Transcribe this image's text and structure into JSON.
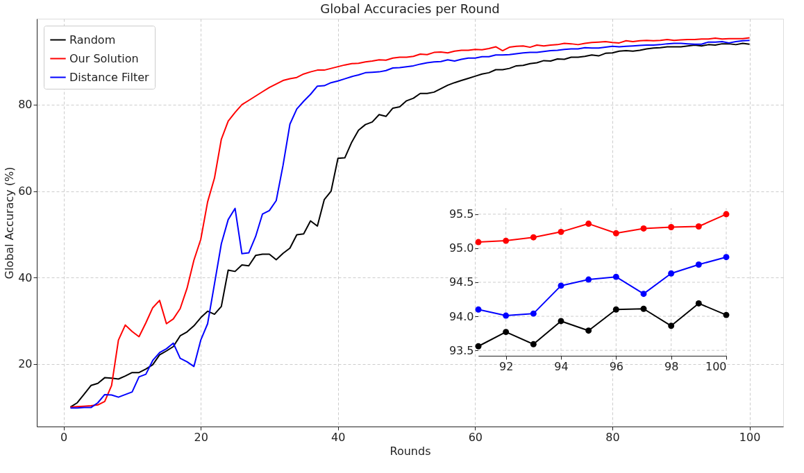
{
  "chart_data": [
    {
      "type": "line",
      "title": "Global Accuracies per Round",
      "xlabel": "Rounds",
      "ylabel": "Global Accuracy (%)",
      "x": [
        1,
        2,
        3,
        4,
        5,
        6,
        7,
        8,
        9,
        10,
        11,
        12,
        13,
        14,
        15,
        16,
        17,
        18,
        19,
        20,
        21,
        22,
        23,
        24,
        25,
        26,
        27,
        28,
        29,
        30,
        31,
        32,
        33,
        34,
        35,
        36,
        37,
        38,
        39,
        40,
        41,
        42,
        43,
        44,
        45,
        46,
        47,
        48,
        49,
        50,
        51,
        52,
        53,
        54,
        55,
        56,
        57,
        58,
        59,
        60,
        61,
        62,
        63,
        64,
        65,
        66,
        67,
        68,
        69,
        70,
        71,
        72,
        73,
        74,
        75,
        76,
        77,
        78,
        79,
        80,
        81,
        82,
        83,
        84,
        85,
        86,
        87,
        88,
        89,
        90,
        91,
        92,
        93,
        94,
        95,
        96,
        97,
        98,
        99,
        100
      ],
      "series": [
        {
          "name": "Random",
          "color": "#000000",
          "values": [
            10,
            11,
            13,
            15,
            15.5,
            16.8,
            16.7,
            16.5,
            17.2,
            18,
            18,
            18.8,
            19.8,
            22.1,
            23,
            24,
            26.5,
            27.4,
            28.8,
            30.7,
            32.2,
            31.5,
            33.3,
            41.7,
            41.4,
            42.9,
            42.7,
            45.1,
            45.4,
            45.4,
            44.1,
            45.6,
            46.8,
            49.9,
            50.1,
            53.1,
            51.9,
            58,
            60,
            67.6,
            67.7,
            71.3,
            74.1,
            75.4,
            76,
            77.7,
            77.3,
            79.2,
            79.5,
            80.9,
            81.5,
            82.6,
            82.6,
            82.9,
            83.7,
            84.5,
            85.1,
            85.6,
            86.1,
            86.6,
            87.1,
            87.4,
            88.1,
            88.1,
            88.4,
            89,
            89.1,
            89.5,
            89.7,
            90.2,
            90.1,
            90.6,
            90.5,
            91,
            91,
            91.2,
            91.5,
            91.3,
            91.9,
            92,
            92.4,
            92.5,
            92.4,
            92.6,
            92.9,
            93.1,
            93.2,
            93.4,
            93.4,
            93.4,
            93.6,
            93.8,
            93.6,
            93.9,
            93.8,
            94.1,
            94.1,
            93.9,
            94.2,
            94
          ]
        },
        {
          "name": "Our Solution",
          "color": "#ff0000",
          "values": [
            10,
            10.1,
            10.2,
            10.3,
            10.5,
            11.3,
            15,
            25.5,
            29,
            27.5,
            26.3,
            29.5,
            33,
            34.7,
            29.3,
            30.4,
            32.8,
            37.5,
            44,
            48.8,
            57.5,
            63,
            72,
            76.2,
            78.2,
            80,
            81,
            82,
            83,
            84,
            84.8,
            85.6,
            86,
            86.3,
            87.1,
            87.6,
            88,
            88,
            88.4,
            88.8,
            89.2,
            89.5,
            89.6,
            89.9,
            90.1,
            90.4,
            90.3,
            90.8,
            91,
            91,
            91.2,
            91.7,
            91.6,
            92.1,
            92.2,
            92,
            92.4,
            92.6,
            92.6,
            92.8,
            92.7,
            93,
            93.4,
            92.5,
            93.3,
            93.5,
            93.6,
            93.3,
            93.8,
            93.6,
            93.8,
            93.9,
            94.2,
            94.1,
            93.9,
            94.2,
            94.4,
            94.5,
            94.6,
            94.4,
            94.3,
            94.8,
            94.6,
            94.8,
            94.9,
            94.8,
            94.9,
            95.1,
            94.9,
            95,
            95.1,
            95.1,
            95.2,
            95.2,
            95.4,
            95.2,
            95.3,
            95.3,
            95.3,
            95.5
          ]
        },
        {
          "name": "Distance Filter",
          "color": "#0000ff",
          "values": [
            9.8,
            9.8,
            9.9,
            9.9,
            11,
            12.9,
            12.8,
            12.3,
            12.9,
            13.5,
            17,
            17.6,
            20.8,
            22.6,
            23.5,
            24.8,
            21.3,
            20.5,
            19.4,
            25.5,
            29.3,
            38.5,
            47.8,
            53.4,
            56,
            45.5,
            45.7,
            49.5,
            54.7,
            55.5,
            57.8,
            66,
            75.5,
            79,
            80.8,
            82.4,
            84.3,
            84.4,
            85.1,
            85.5,
            86,
            86.5,
            86.9,
            87.4,
            87.5,
            87.6,
            87.9,
            88.5,
            88.6,
            88.8,
            89,
            89.4,
            89.7,
            89.9,
            90,
            90.4,
            90.1,
            90.5,
            90.8,
            90.8,
            91.1,
            91.1,
            91.5,
            91.5,
            91.6,
            91.8,
            92,
            92.1,
            92.1,
            92.3,
            92.5,
            92.6,
            92.8,
            92.9,
            92.9,
            93.2,
            93.1,
            93.1,
            93.3,
            93.5,
            93.4,
            93.5,
            93.6,
            93.7,
            93.8,
            93.8,
            93.9,
            94.1,
            94.2,
            94.2,
            94.1,
            94,
            94,
            94.5,
            94.5,
            94.6,
            94.3,
            94.6,
            94.8,
            94.9
          ]
        }
      ],
      "xlim": [
        -3.9,
        104.9
      ],
      "ylim": [
        5.5,
        99.9
      ],
      "xticks": [
        0,
        20,
        40,
        60,
        80,
        100
      ],
      "yticks": [
        20,
        40,
        60,
        80
      ],
      "grid": true,
      "legend": "top left"
    },
    {
      "type": "line",
      "x": [
        91,
        92,
        93,
        94,
        95,
        96,
        97,
        98,
        99,
        100
      ],
      "series": [
        {
          "color": "#ff0000",
          "values": [
            95.09,
            95.11,
            95.16,
            95.24,
            95.36,
            95.22,
            95.29,
            95.31,
            95.32,
            95.5
          ]
        },
        {
          "color": "#0000ff",
          "values": [
            94.1,
            94.01,
            94.04,
            94.45,
            94.54,
            94.58,
            94.33,
            94.63,
            94.76,
            94.87
          ]
        },
        {
          "color": "#000000",
          "values": [
            93.56,
            93.77,
            93.59,
            93.93,
            93.79,
            94.1,
            94.11,
            93.86,
            94.19,
            94.02
          ]
        }
      ],
      "xlim": [
        91,
        100
      ],
      "ylim": [
        93.42,
        95.59
      ],
      "xticks": [
        92,
        94,
        96,
        98,
        100
      ],
      "yticks": [
        {
          "value": 93.5,
          "label": "93.5"
        },
        {
          "value": 94,
          "label": "94.0"
        },
        {
          "value": 94.5,
          "label": "94.5"
        },
        {
          "value": 95,
          "label": "95.0"
        },
        {
          "value": 95.5,
          "label": "95.5"
        }
      ],
      "grid": true,
      "marker": "circle"
    }
  ]
}
